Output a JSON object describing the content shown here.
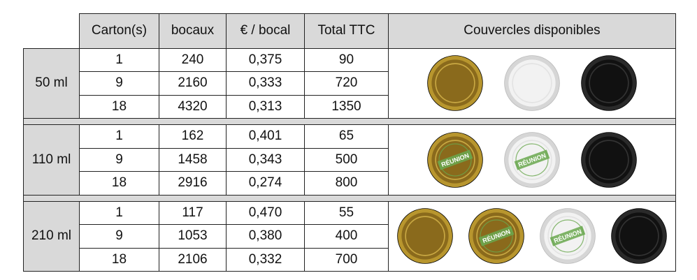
{
  "table": {
    "headers": [
      "Carton(s)",
      "bocaux",
      "€ / bocal",
      "Total TTC",
      "Couvercles disponibles"
    ],
    "groups": [
      {
        "volume": "50 ml",
        "rows": [
          [
            "1",
            "240",
            "0,375",
            "90"
          ],
          [
            "9",
            "2160",
            "0,333",
            "720"
          ],
          [
            "18",
            "4320",
            "0,313",
            "1350"
          ]
        ],
        "lids": [
          "gold-lid-icon",
          "white-lid-icon",
          "black-lid-icon"
        ]
      },
      {
        "volume": "110 ml",
        "rows": [
          [
            "1",
            "162",
            "0,401",
            "65"
          ],
          [
            "9",
            "1458",
            "0,343",
            "500"
          ],
          [
            "18",
            "2916",
            "0,274",
            "800"
          ]
        ],
        "lids": [
          "gold-reunion-lid-icon",
          "white-reunion-lid-icon",
          "black-lid-icon"
        ]
      },
      {
        "volume": "210 ml",
        "rows": [
          [
            "1",
            "117",
            "0,470",
            "55"
          ],
          [
            "9",
            "1053",
            "0,380",
            "400"
          ],
          [
            "18",
            "2106",
            "0,332",
            "700"
          ]
        ],
        "lids": [
          "gold-lid-icon",
          "gold-reunion-lid-icon",
          "white-reunion-lid-icon",
          "black-lid-icon"
        ]
      }
    ]
  },
  "lid_label": "RÉUNION",
  "colors": {
    "header_bg": "#d9d9d9",
    "gold": "#b8962e",
    "white": "#f2f2f2",
    "black": "#111111",
    "stamp_green": "#6aa84f"
  }
}
